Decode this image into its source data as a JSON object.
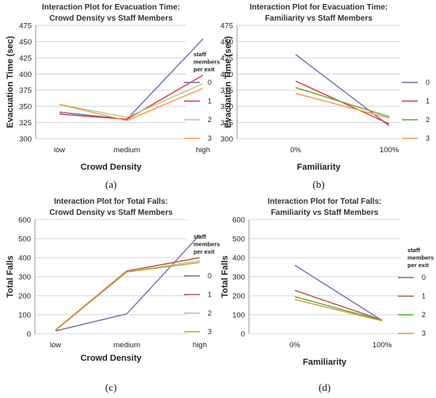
{
  "chart_data": [
    {
      "type": "line",
      "title": [
        "Interaction Plot for Evacuation Time:",
        "Crowd Density vs Staff Members"
      ],
      "xlabel": "Crowd Density",
      "ylabel": "Evacuation Time (sec)",
      "categories": [
        "low",
        "medium",
        "high"
      ],
      "ylim": [
        300,
        475
      ],
      "yticks": [
        300,
        325,
        350,
        375,
        400,
        425,
        450,
        475
      ],
      "legend_title": [
        "staff",
        "members",
        "per exit"
      ],
      "legend_position": "right",
      "series": [
        {
          "name": "0",
          "color": "#6f6fb4",
          "values": [
            341,
            330,
            454
          ]
        },
        {
          "name": "1",
          "color": "#e2373b",
          "values": [
            338,
            330,
            398
          ]
        },
        {
          "name": "2",
          "color": "#a9d18e",
          "values": [
            353,
            333,
            385
          ]
        },
        {
          "name": "3",
          "color": "#f79646",
          "values": [
            353,
            328,
            378
          ]
        }
      ],
      "caption": "(a)"
    },
    {
      "type": "line",
      "title": [
        "Interaction Plot for Evacuation Time:",
        "Familiarity vs Staff Members"
      ],
      "xlabel": "Familiarity",
      "ylabel": "Evacuation Time (sec)",
      "categories": [
        "0%",
        "100%"
      ],
      "ylim": [
        300,
        475
      ],
      "yticks": [
        300,
        325,
        350,
        375,
        400,
        425,
        450,
        475
      ],
      "legend_title": [],
      "legend_position": "right",
      "series": [
        {
          "name": "0",
          "color": "#6f6fb4",
          "values": [
            430,
            320
          ]
        },
        {
          "name": "1",
          "color": "#e2373b",
          "values": [
            389,
            323
          ]
        },
        {
          "name": "2",
          "color": "#5faa3a",
          "values": [
            379,
            334
          ]
        },
        {
          "name": "3",
          "color": "#f79646",
          "values": [
            370,
            332
          ]
        }
      ],
      "caption": "(b)"
    },
    {
      "type": "line",
      "title": [
        "Interaction Plot for Total Falls:",
        "Crowd Density vs Staff Members"
      ],
      "xlabel": "Crowd Density",
      "ylabel": "Total Falls",
      "categories": [
        "low",
        "medium",
        "high"
      ],
      "ylim": [
        0,
        600
      ],
      "yticks": [
        0,
        100,
        200,
        300,
        400,
        500,
        600
      ],
      "legend_title": [
        "staff",
        "members",
        "per exit"
      ],
      "legend_position": "right",
      "series": [
        {
          "name": "0",
          "color": "#6f6fb4",
          "values": [
            15,
            105,
            520
          ]
        },
        {
          "name": "1",
          "color": "#b5544f",
          "values": [
            20,
            330,
            400
          ]
        },
        {
          "name": "2",
          "color": "#a9d18e",
          "values": [
            18,
            325,
            385
          ]
        },
        {
          "name": "3",
          "color": "#c9a227",
          "values": [
            18,
            325,
            375
          ]
        }
      ],
      "caption": "(c)"
    },
    {
      "type": "line",
      "title": [
        "Interaction Plot for Total Falls:",
        "Familiarity vs Staff Members"
      ],
      "xlabel": "Familiarity",
      "ylabel": "Total Falls",
      "categories": [
        "0%",
        "100%"
      ],
      "ylim": [
        0,
        600
      ],
      "yticks": [
        0,
        100,
        200,
        300,
        400,
        500,
        600
      ],
      "legend_title": [
        "staff",
        "members",
        "per exit"
      ],
      "legend_position": "right",
      "series": [
        {
          "name": "0",
          "color": "#6f6fb4",
          "values": [
            360,
            70
          ]
        },
        {
          "name": "1",
          "color": "#b5544f",
          "values": [
            228,
            72
          ]
        },
        {
          "name": "2",
          "color": "#5faa3a",
          "values": [
            195,
            70
          ]
        },
        {
          "name": "3",
          "color": "#c9a227",
          "values": [
            180,
            68
          ]
        }
      ],
      "caption": "(d)"
    }
  ]
}
